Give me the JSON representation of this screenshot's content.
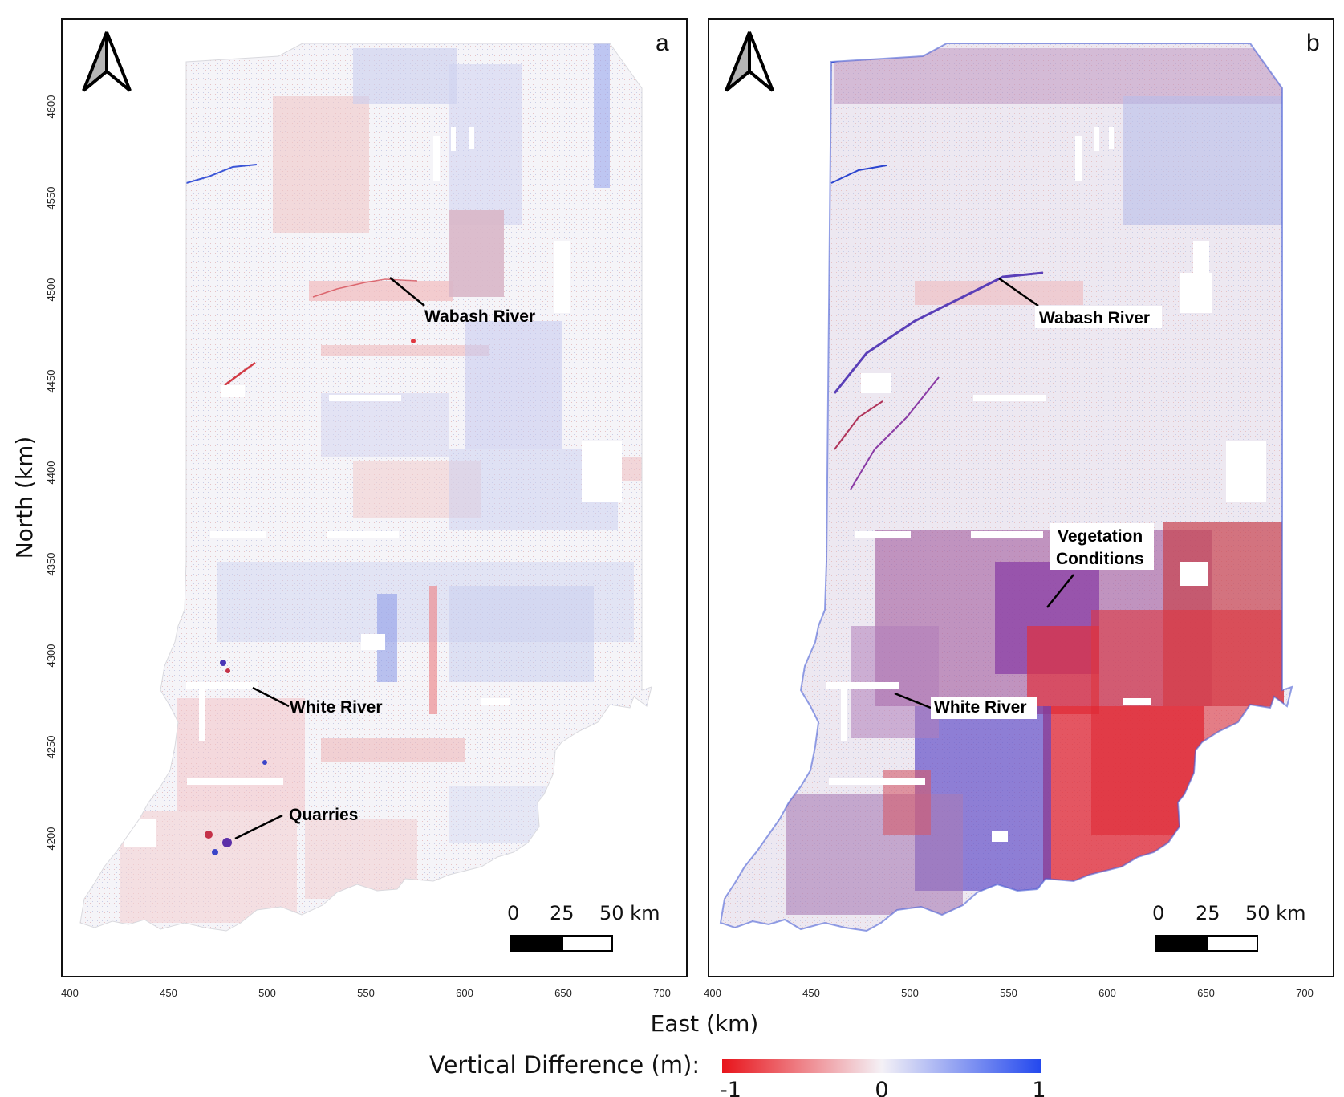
{
  "axes": {
    "x_title": "East (km)",
    "y_title": "North (km)",
    "x_ticks": [
      "400",
      "450",
      "500",
      "550",
      "600",
      "650",
      "700"
    ],
    "y_ticks": [
      "4600",
      "4550",
      "4500",
      "4450",
      "4400",
      "4350",
      "4300",
      "4250",
      "4200"
    ]
  },
  "panels": [
    {
      "letter": "a",
      "annotations": {
        "wabash": "Wabash River",
        "white": "White River",
        "quarries": "Quarries"
      },
      "scalebar": {
        "n0": "0",
        "n1": "25",
        "n2": "50 km"
      }
    },
    {
      "letter": "b",
      "annotations": {
        "wabash": "Wabash River",
        "veg1": "Vegetation",
        "veg2": "Conditions",
        "white": "White River"
      },
      "scalebar": {
        "n0": "0",
        "n1": "25",
        "n2": "50 km"
      }
    }
  ],
  "legend": {
    "title": "Vertical Difference (m):",
    "min": "-1",
    "mid": "0",
    "max": "1",
    "colors": {
      "low": "#e8141b",
      "mid": "#f4f1f6",
      "high": "#2348ee"
    }
  },
  "chart_data": {
    "type": "heatmap",
    "xlabel": "East (km)",
    "ylabel": "North (km)",
    "xlim": [
      400,
      700
    ],
    "ylim": [
      4180,
      4630
    ],
    "color_scale": {
      "label": "Vertical Difference (m):",
      "min": -1,
      "max": 1
    }
  }
}
